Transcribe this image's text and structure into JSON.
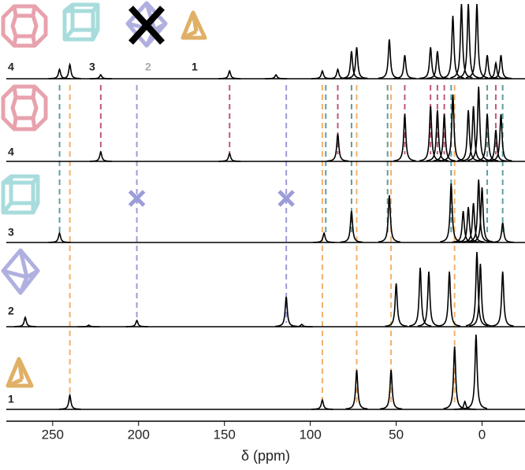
{
  "chart_data": {
    "type": "spectrum",
    "xlabel": "δ (ppm)",
    "xlim": [
      277,
      -25
    ],
    "xticks": [
      250,
      200,
      150,
      100,
      50,
      0
    ],
    "legend": [
      {
        "label": "4",
        "color": "#e8a2ad"
      },
      {
        "label": "3",
        "color": "#a8dcdc"
      },
      {
        "label": "2",
        "color": "#aaa"
      },
      {
        "label": "1",
        "color": "#e0b067"
      }
    ],
    "series": [
      {
        "color": "#000",
        "x": [
          246,
          240,
          222,
          147,
          120,
          93,
          84,
          76,
          73,
          54,
          45,
          30,
          26,
          17,
          12,
          8,
          3,
          -3,
          -8,
          -11
        ],
        "values": [
          12,
          18,
          5,
          10,
          5,
          10,
          12,
          35,
          40,
          50,
          30,
          40,
          35,
          80,
          95,
          95,
          95,
          30,
          20,
          30
        ]
      },
      {
        "name": "4",
        "color": "#000",
        "x": [
          222,
          147,
          84,
          45,
          30,
          26,
          22,
          17,
          8,
          5,
          2,
          -3,
          -8,
          -11
        ],
        "values": [
          12,
          10,
          35,
          60,
          70,
          65,
          60,
          85,
          65,
          70,
          95,
          60,
          40,
          60
        ]
      },
      {
        "name": "3",
        "color": "#000",
        "x": [
          246,
          92,
          76,
          54,
          18,
          11,
          8,
          5,
          2,
          0,
          -12
        ],
        "values": [
          12,
          12,
          40,
          60,
          75,
          40,
          45,
          50,
          80,
          70,
          25
        ]
      },
      {
        "name": "2",
        "color": "#000",
        "x": [
          266,
          229,
          201,
          114,
          105,
          50,
          36,
          31,
          19,
          3,
          1,
          -12
        ],
        "values": [
          12,
          2,
          8,
          38,
          3,
          55,
          75,
          70,
          70,
          95,
          80,
          70
        ]
      },
      {
        "name": "1",
        "color": "#000",
        "x": [
          240,
          93,
          73,
          53,
          16,
          10,
          3.5
        ],
        "values": [
          18,
          12,
          50,
          50,
          80,
          10,
          95
        ]
      }
    ],
    "reference_lines": [
      {
        "x": 240,
        "color": "#f4b06a"
      },
      {
        "x": 93,
        "color": "#f4b06a"
      },
      {
        "x": 73,
        "color": "#f4b06a"
      },
      {
        "x": 53,
        "color": "#f4b06a"
      },
      {
        "x": 16,
        "color": "#f4b06a"
      },
      {
        "x": 201,
        "color": "#9c9cd8"
      },
      {
        "x": 114,
        "color": "#9c9cd8"
      },
      {
        "x": 246,
        "color": "#5f9ea0"
      },
      {
        "x": 91,
        "color": "#5f9ea0"
      },
      {
        "x": 76,
        "color": "#5f9ea0"
      },
      {
        "x": 55,
        "color": "#5f9ea0"
      },
      {
        "x": 18,
        "color": "#5f9ea0"
      },
      {
        "x": -3,
        "color": "#5f9ea0"
      },
      {
        "x": -12,
        "color": "#5f9ea0"
      },
      {
        "x": 222,
        "color": "#c0587a"
      },
      {
        "x": 147,
        "color": "#c0587a"
      },
      {
        "x": 84,
        "color": "#c0587a"
      },
      {
        "x": 45,
        "color": "#c0587a"
      },
      {
        "x": 30,
        "color": "#c0587a"
      },
      {
        "x": 26,
        "color": "#c0587a"
      },
      {
        "x": 22,
        "color": "#c0587a"
      },
      {
        "x": -8,
        "color": "#c0587a"
      }
    ],
    "absent_peaks": {
      "x": [
        201,
        114
      ],
      "color": "#9c9cd8"
    }
  }
}
